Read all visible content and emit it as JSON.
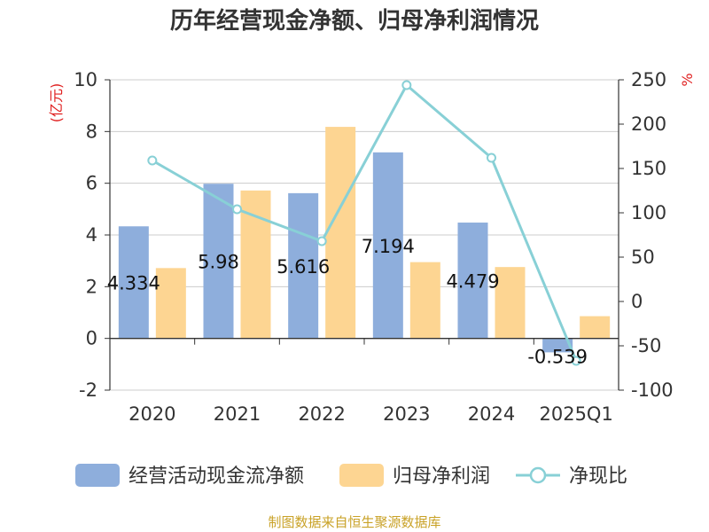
{
  "title": "历年经营现金净额、归母净利润情况",
  "source": "制图数据来自恒生聚源数据库",
  "colors": {
    "cash": "#8eaedc",
    "profit": "#fdd592",
    "ratio": "#88d0d6",
    "unit": "#e02020",
    "source": "#c9a227"
  },
  "chart_data": {
    "type": "bar",
    "categories": [
      "2020",
      "2021",
      "2022",
      "2023",
      "2024",
      "2025Q1"
    ],
    "series": [
      {
        "name": "经营活动现金流净额",
        "type": "bar",
        "axis": "left",
        "values": [
          4.334,
          5.98,
          5.616,
          7.194,
          4.479,
          -0.539
        ],
        "data_labels": [
          "4.334",
          "5.98",
          "5.616",
          "7.194",
          "4.479",
          "-0.539"
        ]
      },
      {
        "name": "归母净利润",
        "type": "bar",
        "axis": "left",
        "values": [
          2.72,
          5.72,
          8.18,
          2.95,
          2.76,
          0.86
        ]
      },
      {
        "name": "净现比",
        "type": "line",
        "axis": "right",
        "values": [
          159,
          104,
          68,
          244,
          162,
          -67
        ]
      }
    ],
    "y_left": {
      "label": "(亿元)",
      "min": -2,
      "max": 10,
      "ticks": [
        "-2",
        "0",
        "2",
        "4",
        "6",
        "8",
        "10"
      ]
    },
    "y_right": {
      "label": "%",
      "min": -100,
      "max": 250,
      "ticks": [
        "-100",
        "-50",
        "0",
        "50",
        "100",
        "150",
        "200",
        "250"
      ]
    },
    "grid": true,
    "legend": "bottom"
  }
}
